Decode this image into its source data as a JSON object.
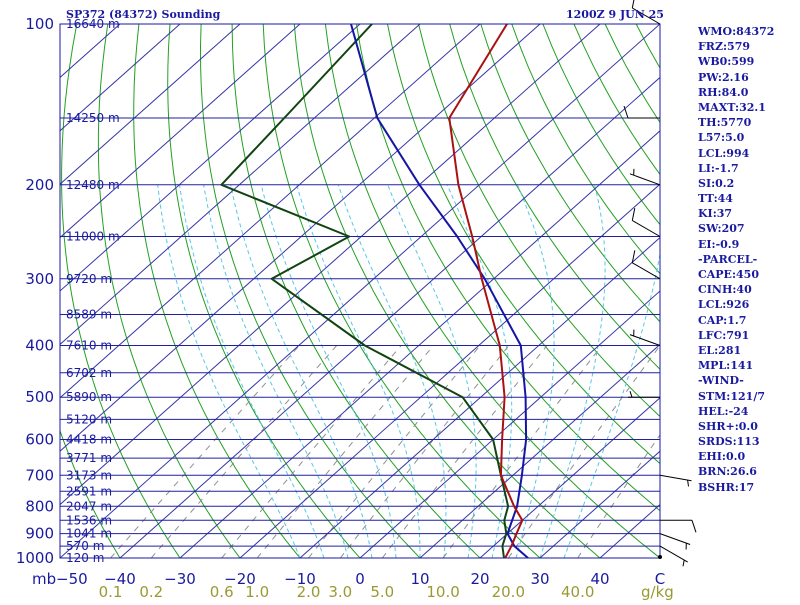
{
  "header": {
    "station": "SP372 (84372) Sounding",
    "time": "1200Z  9 JUN 25"
  },
  "indices": [
    "WMO:84372",
    "FRZ:579",
    "WB0:599",
    "PW:2.16",
    "RH:84.0",
    "MAXT:32.1",
    "TH:5770",
    "L57:5.0",
    "LCL:994",
    "LI:-1.7",
    "SI:0.2",
    "TT:44",
    "KI:37",
    "SW:207",
    "EI:-0.9",
    "-PARCEL-",
    "CAPE:450",
    "CINH:40",
    "LCL:926",
    "CAP:1.7",
    "LFC:791",
    "EL:281",
    "MPL:141",
    "-WIND-",
    "STM:121/7",
    "HEL:-24",
    "SHR+:0.0",
    "SRDS:113",
    "EHI:0.0",
    "BRN:26.6",
    "BSHR:17"
  ],
  "colors": {
    "frame": "#1a1aa0",
    "isobar": "#2020a0",
    "isotherm": "#3535a8",
    "dry_adiabat": "#22a022",
    "moist_adiabat": "#55c8e6",
    "mixing_ratio": "#909090",
    "temperature": "#aa1111",
    "dewpoint": "#114411",
    "parcel": "#1515a5",
    "wind": "#000000",
    "mixing_label": "#9a9a33",
    "axis_text": "#1a1aa0"
  },
  "chart_data": {
    "type": "skew-t",
    "title": "SP372 (84372) Sounding",
    "pressure_range_mb": [
      100,
      1000
    ],
    "temperature_range_c": [
      -50,
      50
    ],
    "pressure_ticks": [
      {
        "p": 100,
        "label": "100"
      },
      {
        "p": 200,
        "label": "200"
      },
      {
        "p": 300,
        "label": "300"
      },
      {
        "p": 400,
        "label": "400"
      },
      {
        "p": 500,
        "label": "500"
      },
      {
        "p": 600,
        "label": "600"
      },
      {
        "p": 700,
        "label": "700"
      },
      {
        "p": 800,
        "label": "800"
      },
      {
        "p": 900,
        "label": "900"
      },
      {
        "p": 1000,
        "label": "1000"
      }
    ],
    "pressure_unit_label": "mb",
    "temperature_ticks": [
      {
        "t": -50,
        "label": "−50"
      },
      {
        "t": -40,
        "label": "−40"
      },
      {
        "t": -30,
        "label": "−30"
      },
      {
        "t": -20,
        "label": "−20"
      },
      {
        "t": -10,
        "label": "−10"
      },
      {
        "t": 0,
        "label": "0"
      },
      {
        "t": 10,
        "label": "10"
      },
      {
        "t": 20,
        "label": "20"
      },
      {
        "t": 30,
        "label": "30"
      },
      {
        "t": 40,
        "label": "40"
      },
      {
        "t": 50,
        "label": "C"
      }
    ],
    "heights": [
      {
        "p": 100,
        "label": "16640 m"
      },
      {
        "p": 150,
        "label": "14250 m"
      },
      {
        "p": 200,
        "label": "12480 m"
      },
      {
        "p": 250,
        "label": "11000 m"
      },
      {
        "p": 300,
        "label": "9720 m"
      },
      {
        "p": 350,
        "label": "8589 m"
      },
      {
        "p": 400,
        "label": "7610 m"
      },
      {
        "p": 450,
        "label": "6702 m"
      },
      {
        "p": 500,
        "label": "5890 m"
      },
      {
        "p": 550,
        "label": "5120 m"
      },
      {
        "p": 600,
        "label": "4418 m"
      },
      {
        "p": 650,
        "label": "3771 m"
      },
      {
        "p": 700,
        "label": "3173 m"
      },
      {
        "p": 750,
        "label": "2591 m"
      },
      {
        "p": 800,
        "label": "2047 m"
      },
      {
        "p": 850,
        "label": "1536 m"
      },
      {
        "p": 900,
        "label": "1041 m"
      },
      {
        "p": 950,
        "label": "570 m"
      },
      {
        "p": 1000,
        "label": "120 m"
      }
    ],
    "mixing_ratios": [
      {
        "w": 0.1,
        "label": "0.1"
      },
      {
        "w": 0.2,
        "label": "0.2"
      },
      {
        "w": 0.6,
        "label": "0.6"
      },
      {
        "w": 1.0,
        "label": "1.0"
      },
      {
        "w": 2.0,
        "label": "2.0"
      },
      {
        "w": 3.0,
        "label": "3.0"
      },
      {
        "w": 5.0,
        "label": "5.0"
      },
      {
        "w": 10.0,
        "label": "10.0"
      },
      {
        "w": 20.0,
        "label": "20.0"
      },
      {
        "w": 40.0,
        "label": "40.0"
      }
    ],
    "mixing_unit_label": "g/kg",
    "temperature_profile": [
      {
        "p": 100,
        "t": -75.5
      },
      {
        "p": 150,
        "t": -67.5
      },
      {
        "p": 200,
        "t": -53.5
      },
      {
        "p": 250,
        "t": -41.5
      },
      {
        "p": 300,
        "t": -32.0
      },
      {
        "p": 400,
        "t": -16.5
      },
      {
        "p": 500,
        "t": -6.0
      },
      {
        "p": 600,
        "t": 1.5
      },
      {
        "p": 700,
        "t": 8.0
      },
      {
        "p": 800,
        "t": 16.0
      },
      {
        "p": 850,
        "t": 20.0
      },
      {
        "p": 900,
        "t": 21.5
      },
      {
        "p": 950,
        "t": 23.0
      },
      {
        "p": 1000,
        "t": 24.2
      }
    ],
    "dewpoint_profile": [
      {
        "p": 100,
        "t": -98.0
      },
      {
        "p": 150,
        "t": -95.0
      },
      {
        "p": 200,
        "t": -93.0
      },
      {
        "p": 250,
        "t": -62.0
      },
      {
        "p": 300,
        "t": -67.0
      },
      {
        "p": 400,
        "t": -39.0
      },
      {
        "p": 500,
        "t": -13.0
      },
      {
        "p": 600,
        "t": 0.0
      },
      {
        "p": 700,
        "t": 8.0
      },
      {
        "p": 800,
        "t": 15.0
      },
      {
        "p": 850,
        "t": 17.0
      },
      {
        "p": 900,
        "t": 19.8
      },
      {
        "p": 950,
        "t": 21.5
      },
      {
        "p": 1000,
        "t": 24.0
      }
    ],
    "parcel_profile": [
      {
        "p": 100,
        "t": -101.5
      },
      {
        "p": 150,
        "t": -79.5
      },
      {
        "p": 200,
        "t": -60.0
      },
      {
        "p": 250,
        "t": -44.0
      },
      {
        "p": 300,
        "t": -31.5
      },
      {
        "p": 400,
        "t": -13.0
      },
      {
        "p": 500,
        "t": -2.5
      },
      {
        "p": 600,
        "t": 5.5
      },
      {
        "p": 700,
        "t": 11.5
      },
      {
        "p": 800,
        "t": 16.5
      },
      {
        "p": 900,
        "t": 20.0
      },
      {
        "p": 950,
        "t": 23.5
      },
      {
        "p": 1000,
        "t": 28.0
      }
    ],
    "wind_barbs": [
      {
        "p": 100,
        "dir": 300,
        "speed_kt": 10
      },
      {
        "p": 150,
        "dir": 270,
        "speed_kt": 10
      },
      {
        "p": 200,
        "dir": 290,
        "speed_kt": 5
      },
      {
        "p": 250,
        "dir": 300,
        "speed_kt": 10
      },
      {
        "p": 300,
        "dir": 300,
        "speed_kt": 10
      },
      {
        "p": 400,
        "dir": 290,
        "speed_kt": 5
      },
      {
        "p": 500,
        "dir": 270,
        "speed_kt": 5
      },
      {
        "p": 700,
        "dir": 100,
        "speed_kt": 5
      },
      {
        "p": 850,
        "dir": 90,
        "speed_kt": 10
      },
      {
        "p": 900,
        "dir": 110,
        "speed_kt": 5
      },
      {
        "p": 950,
        "dir": 120,
        "speed_kt": 5
      }
    ]
  }
}
